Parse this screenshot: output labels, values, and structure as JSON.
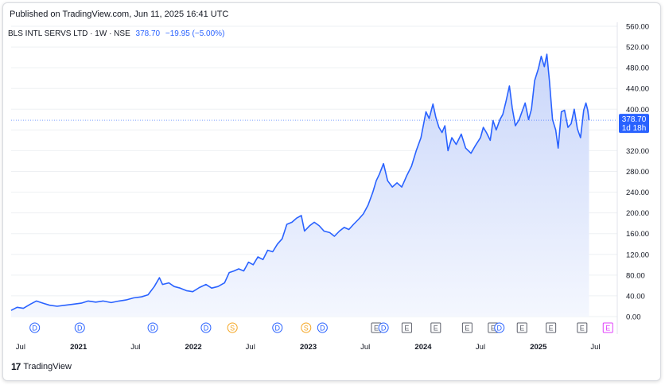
{
  "header": {
    "published": "Published on TradingView.com, Jun 11, 2025 16:41 UTC"
  },
  "symbol": {
    "name": "BLS INTL SERVS LTD · 1W · NSE",
    "price": "378.70",
    "change": "−19.95 (−5.00%)"
  },
  "price_label": {
    "value": "378.70",
    "countdown": "1d 18h"
  },
  "footer": {
    "logo": "17",
    "brand": "TradingView"
  },
  "colors": {
    "line": "#2962ff",
    "area_top": "#c9d6fa",
    "area_bottom": "#f4f7fe",
    "grid": "#eef0f3",
    "axis_text": "#131722",
    "dividend": "#2962ff",
    "split": "#f5a623",
    "earnings": "#5d606b",
    "upcoming": "#e040fb"
  },
  "chart_data": {
    "type": "area",
    "ylim": [
      0,
      560
    ],
    "y_ticks": [
      "560.00",
      "520.00",
      "480.00",
      "440.00",
      "400.00",
      "360.00",
      "320.00",
      "280.00",
      "240.00",
      "200.00",
      "160.00",
      "120.00",
      "80.00",
      "40.00",
      "0.00"
    ],
    "x_ticks": [
      {
        "label": "Jul",
        "date": "2020-07-01",
        "bold": false
      },
      {
        "label": "2021",
        "date": "2021-01-01",
        "bold": true
      },
      {
        "label": "Jul",
        "date": "2021-07-01",
        "bold": false
      },
      {
        "label": "2022",
        "date": "2022-01-01",
        "bold": true
      },
      {
        "label": "Jul",
        "date": "2022-07-01",
        "bold": false
      },
      {
        "label": "2023",
        "date": "2023-01-01",
        "bold": true
      },
      {
        "label": "Jul",
        "date": "2023-07-01",
        "bold": false
      },
      {
        "label": "2024",
        "date": "2024-01-01",
        "bold": true
      },
      {
        "label": "Jul",
        "date": "2024-07-01",
        "bold": false
      },
      {
        "label": "2025",
        "date": "2025-01-01",
        "bold": true
      },
      {
        "label": "Jul",
        "date": "2025-07-01",
        "bold": false
      }
    ],
    "x_range": [
      "2020-06-01",
      "2025-07-10"
    ],
    "series": [
      {
        "points": [
          [
            "2020-06-01",
            12
          ],
          [
            "2020-06-20",
            18
          ],
          [
            "2020-07-10",
            16
          ],
          [
            "2020-08-01",
            24
          ],
          [
            "2020-08-20",
            30
          ],
          [
            "2020-09-10",
            26
          ],
          [
            "2020-10-01",
            22
          ],
          [
            "2020-10-25",
            20
          ],
          [
            "2020-11-20",
            22
          ],
          [
            "2020-12-15",
            24
          ],
          [
            "2021-01-10",
            26
          ],
          [
            "2021-02-01",
            30
          ],
          [
            "2021-02-25",
            28
          ],
          [
            "2021-03-20",
            30
          ],
          [
            "2021-04-15",
            27
          ],
          [
            "2021-05-10",
            30
          ],
          [
            "2021-06-01",
            32
          ],
          [
            "2021-06-25",
            36
          ],
          [
            "2021-07-20",
            38
          ],
          [
            "2021-08-10",
            42
          ],
          [
            "2021-08-30",
            58
          ],
          [
            "2021-09-15",
            75
          ],
          [
            "2021-09-25",
            62
          ],
          [
            "2021-10-15",
            65
          ],
          [
            "2021-11-01",
            58
          ],
          [
            "2021-11-20",
            55
          ],
          [
            "2021-12-10",
            50
          ],
          [
            "2021-12-30",
            48
          ],
          [
            "2022-01-20",
            56
          ],
          [
            "2022-02-10",
            62
          ],
          [
            "2022-02-28",
            55
          ],
          [
            "2022-03-20",
            58
          ],
          [
            "2022-04-10",
            65
          ],
          [
            "2022-04-25",
            85
          ],
          [
            "2022-05-10",
            88
          ],
          [
            "2022-05-25",
            92
          ],
          [
            "2022-06-10",
            88
          ],
          [
            "2022-06-25",
            105
          ],
          [
            "2022-07-10",
            100
          ],
          [
            "2022-07-25",
            115
          ],
          [
            "2022-08-10",
            110
          ],
          [
            "2022-08-25",
            128
          ],
          [
            "2022-09-10",
            125
          ],
          [
            "2022-09-25",
            140
          ],
          [
            "2022-10-10",
            150
          ],
          [
            "2022-10-25",
            178
          ],
          [
            "2022-11-10",
            182
          ],
          [
            "2022-11-25",
            190
          ],
          [
            "2022-12-10",
            195
          ],
          [
            "2022-12-20",
            165
          ],
          [
            "2023-01-05",
            175
          ],
          [
            "2023-01-20",
            182
          ],
          [
            "2023-02-05",
            175
          ],
          [
            "2023-02-20",
            165
          ],
          [
            "2023-03-10",
            162
          ],
          [
            "2023-03-25",
            155
          ],
          [
            "2023-04-10",
            165
          ],
          [
            "2023-04-25",
            172
          ],
          [
            "2023-05-10",
            168
          ],
          [
            "2023-05-25",
            178
          ],
          [
            "2023-06-10",
            188
          ],
          [
            "2023-06-25",
            198
          ],
          [
            "2023-07-10",
            215
          ],
          [
            "2023-07-25",
            240
          ],
          [
            "2023-08-05",
            262
          ],
          [
            "2023-08-15",
            275
          ],
          [
            "2023-08-28",
            295
          ],
          [
            "2023-09-10",
            262
          ],
          [
            "2023-09-25",
            250
          ],
          [
            "2023-10-10",
            258
          ],
          [
            "2023-10-25",
            250
          ],
          [
            "2023-11-10",
            272
          ],
          [
            "2023-11-25",
            290
          ],
          [
            "2023-12-10",
            320
          ],
          [
            "2023-12-25",
            345
          ],
          [
            "2024-01-10",
            395
          ],
          [
            "2024-01-20",
            382
          ],
          [
            "2024-02-01",
            410
          ],
          [
            "2024-02-10",
            385
          ],
          [
            "2024-02-20",
            365
          ],
          [
            "2024-03-01",
            355
          ],
          [
            "2024-03-10",
            368
          ],
          [
            "2024-03-20",
            320
          ],
          [
            "2024-04-01",
            345
          ],
          [
            "2024-04-15",
            332
          ],
          [
            "2024-05-01",
            352
          ],
          [
            "2024-05-15",
            325
          ],
          [
            "2024-06-01",
            315
          ],
          [
            "2024-06-15",
            330
          ],
          [
            "2024-07-01",
            345
          ],
          [
            "2024-07-10",
            365
          ],
          [
            "2024-07-20",
            355
          ],
          [
            "2024-08-01",
            340
          ],
          [
            "2024-08-10",
            378
          ],
          [
            "2024-08-20",
            360
          ],
          [
            "2024-09-01",
            380
          ],
          [
            "2024-09-10",
            390
          ],
          [
            "2024-09-20",
            415
          ],
          [
            "2024-10-01",
            445
          ],
          [
            "2024-10-10",
            402
          ],
          [
            "2024-10-20",
            368
          ],
          [
            "2024-11-01",
            380
          ],
          [
            "2024-11-10",
            395
          ],
          [
            "2024-11-20",
            412
          ],
          [
            "2024-12-01",
            380
          ],
          [
            "2024-12-10",
            400
          ],
          [
            "2024-12-20",
            455
          ],
          [
            "2025-01-01",
            478
          ],
          [
            "2025-01-10",
            502
          ],
          [
            "2025-01-20",
            482
          ],
          [
            "2025-01-28",
            506
          ],
          [
            "2025-02-05",
            455
          ],
          [
            "2025-02-15",
            380
          ],
          [
            "2025-02-25",
            360
          ],
          [
            "2025-03-05",
            325
          ],
          [
            "2025-03-15",
            395
          ],
          [
            "2025-03-25",
            398
          ],
          [
            "2025-04-05",
            365
          ],
          [
            "2025-04-15",
            372
          ],
          [
            "2025-04-25",
            400
          ],
          [
            "2025-05-05",
            362
          ],
          [
            "2025-05-15",
            345
          ],
          [
            "2025-05-25",
            398
          ],
          [
            "2025-06-01",
            412
          ],
          [
            "2025-06-07",
            398
          ],
          [
            "2025-06-11",
            378.7
          ]
        ]
      }
    ],
    "last_value": 378.7,
    "events": [
      {
        "label": "D",
        "type": "dividend",
        "date": "2020-08-15"
      },
      {
        "label": "D",
        "type": "dividend",
        "date": "2021-01-05"
      },
      {
        "label": "D",
        "type": "dividend",
        "date": "2021-08-25"
      },
      {
        "label": "D",
        "type": "dividend",
        "date": "2022-02-10"
      },
      {
        "label": "S",
        "type": "split",
        "date": "2022-05-05"
      },
      {
        "label": "D",
        "type": "dividend",
        "date": "2022-09-25"
      },
      {
        "label": "S",
        "type": "split",
        "date": "2022-12-25"
      },
      {
        "label": "D",
        "type": "dividend",
        "date": "2023-02-15"
      },
      {
        "label": "E",
        "type": "earnings",
        "date": "2023-08-05"
      },
      {
        "label": "D",
        "type": "dividend",
        "date": "2023-08-28"
      },
      {
        "label": "E",
        "type": "earnings",
        "date": "2023-11-10"
      },
      {
        "label": "E",
        "type": "earnings",
        "date": "2024-02-10"
      },
      {
        "label": "E",
        "type": "earnings",
        "date": "2024-05-20"
      },
      {
        "label": "E",
        "type": "earnings",
        "date": "2024-08-10"
      },
      {
        "label": "D",
        "type": "dividend",
        "date": "2024-08-30"
      },
      {
        "label": "E",
        "type": "earnings",
        "date": "2024-11-10"
      },
      {
        "label": "E",
        "type": "earnings",
        "date": "2025-02-10"
      },
      {
        "label": "E",
        "type": "earnings",
        "date": "2025-05-20"
      },
      {
        "label": "E",
        "type": "upcoming",
        "date": "2025-08-10"
      }
    ]
  }
}
